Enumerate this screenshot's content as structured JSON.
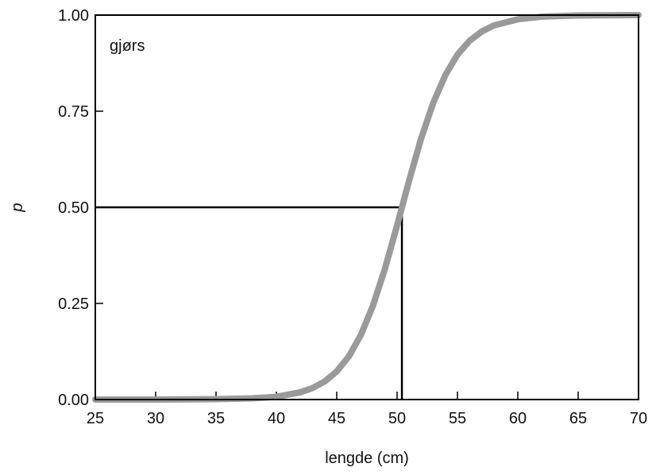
{
  "chart_data": {
    "type": "line",
    "annotation": "gjørs",
    "xlabel": "lengde (cm)",
    "ylabel": "p",
    "x": [
      25,
      30,
      35,
      38,
      40,
      42,
      43,
      44,
      45,
      46,
      47,
      48,
      49,
      50,
      51,
      52,
      53,
      54,
      55,
      56,
      57,
      58,
      60,
      62,
      65,
      70
    ],
    "series": [
      {
        "color": "#9a9a9a",
        "values": [
          0.0,
          0.0,
          0.001,
          0.003,
          0.007,
          0.019,
          0.03,
          0.047,
          0.073,
          0.112,
          0.168,
          0.244,
          0.341,
          0.453,
          0.57,
          0.68,
          0.772,
          0.844,
          0.897,
          0.933,
          0.957,
          0.973,
          0.989,
          0.996,
          0.999,
          1.0
        ]
      }
    ],
    "reference": {
      "x": 50.4,
      "y": 0.5
    },
    "xlim": [
      25,
      70
    ],
    "ylim": [
      0,
      1
    ],
    "xticks": [
      25,
      30,
      35,
      40,
      45,
      50,
      55,
      60,
      65,
      70
    ],
    "yticks": [
      {
        "value": 0,
        "label": "0.00"
      },
      {
        "value": 0.25,
        "label": "0.25"
      },
      {
        "value": 0.5,
        "label": "0.50"
      },
      {
        "value": 0.75,
        "label": "0.75"
      },
      {
        "value": 1,
        "label": "1.00"
      }
    ]
  }
}
